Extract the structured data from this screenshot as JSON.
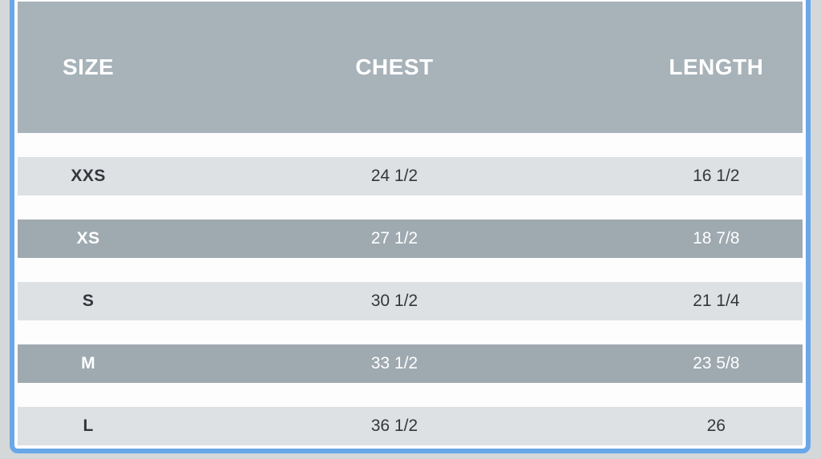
{
  "frame": {
    "border_color": "#6aa7e8",
    "page_background": "#d5d8d9",
    "box_background": "#fdfdfe"
  },
  "chart_data": {
    "type": "table",
    "columns": [
      "SIZE",
      "CHEST",
      "LENGTH"
    ],
    "rows": [
      {
        "size": "XXS",
        "chest": "24 1/2",
        "length": "16 1/2",
        "variant": "light"
      },
      {
        "size": "XS",
        "chest": "27 1/2",
        "length": "18 7/8",
        "variant": "dark"
      },
      {
        "size": "S",
        "chest": "30 1/2",
        "length": "21 1/4",
        "variant": "light"
      },
      {
        "size": "M",
        "chest": "33 1/2",
        "length": "23 5/8",
        "variant": "dark"
      },
      {
        "size": "L",
        "chest": "36 1/2",
        "length": "26",
        "variant": "light"
      }
    ],
    "styling": {
      "header_bg": "#a7b2b9",
      "header_text": "#ffffff",
      "row_light_bg": "#dee1e3",
      "row_light_text": "#33373b",
      "row_dark_bg": "#9ea9b0",
      "row_dark_text": "#ffffff"
    }
  }
}
